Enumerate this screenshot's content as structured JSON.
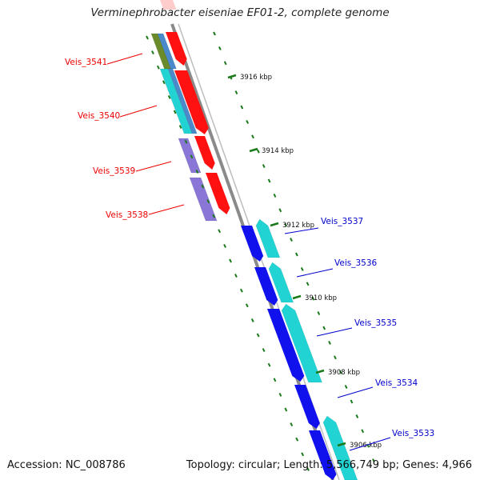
{
  "title": "Verminephrobacter eiseniae EF01-2, complete genome",
  "footer": {
    "accession": "Accession: NC_008786",
    "summary": "Topology: circular; Length: 5,566,749 bp; Genes: 4,966"
  },
  "ticks": [
    "3916 kbp",
    "3914 kbp",
    "3912 kbp",
    "3910 kbp",
    "3908 kbp",
    "3906 kbp"
  ],
  "colors": {
    "backbone": "#8a8a8a",
    "left_label": "#ee0000",
    "right_label": "#0000cc",
    "tick": "#1a7a1a",
    "red": "#ff1111",
    "blue": "#1111ee",
    "cyan": "#22d3d3",
    "purple": "#8a76d6",
    "olive": "#6b8a2a",
    "steel": "#4a8acb"
  },
  "genes_left": [
    {
      "label": "Veis_3541"
    },
    {
      "label": "Veis_3540"
    },
    {
      "label": "Veis_3539"
    },
    {
      "label": "Veis_3538"
    }
  ],
  "genes_right": [
    {
      "label": "Veis_3537"
    },
    {
      "label": "Veis_3536"
    },
    {
      "label": "Veis_3535"
    },
    {
      "label": "Veis_3534"
    },
    {
      "label": "Veis_3533"
    }
  ]
}
